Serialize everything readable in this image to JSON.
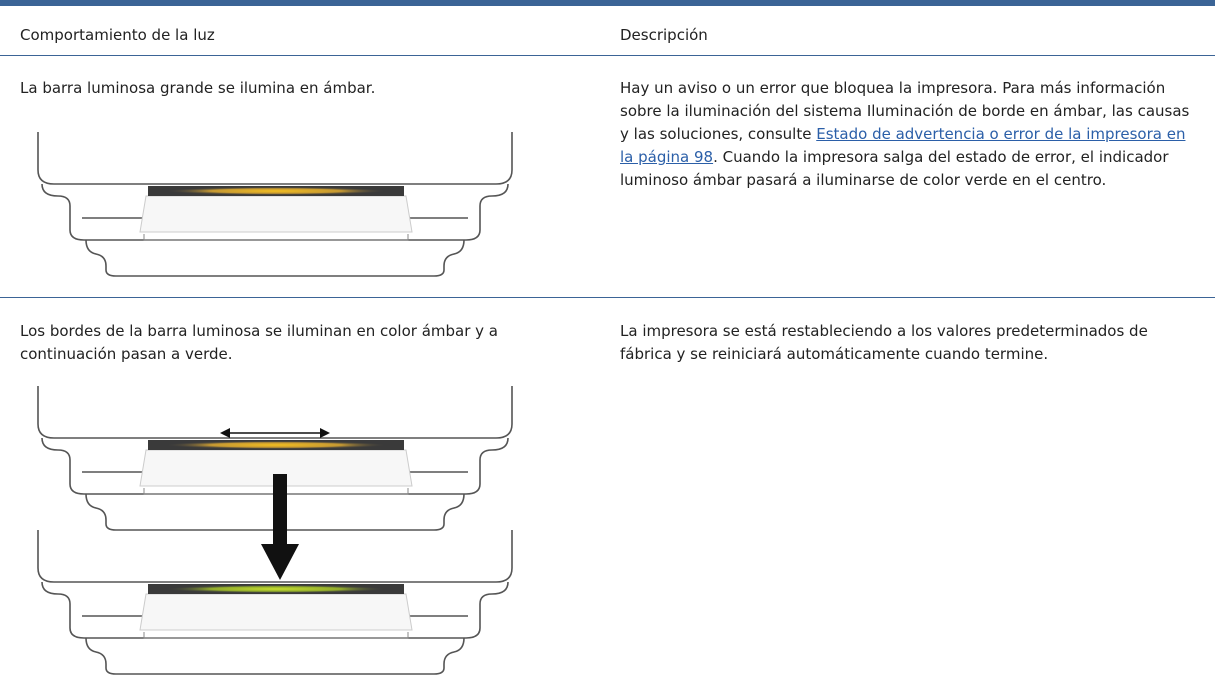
{
  "table": {
    "headers": [
      "Comportamiento de la luz",
      "Descripción"
    ],
    "rows": [
      [
        {
          "text": "La barra luminosa grande se ilumina en ámbar."
        },
        {
          "text_before": "Hay un aviso o un error que bloquea la impresora. Para más información sobre la iluminación del sistema Iluminación de borde en ámbar, las causas y las soluciones, consulte ",
          "link": "Estado de advertencia o error de la impresora en la página 98",
          "text_after": ". Cuando la impresora salga del estado de error, el indicador luminoso ámbar pasará a iluminarse de color verde en el centro."
        }
      ],
      [
        {
          "text": "Los bordes de la barra luminosa se iluminan en color ámbar y a continuación pasan a verde."
        },
        {
          "text": "La impresora se está restableciendo a los valores predeterminados de fábrica y se reiniciará automáticamente cuando termine."
        }
      ]
    ]
  }
}
